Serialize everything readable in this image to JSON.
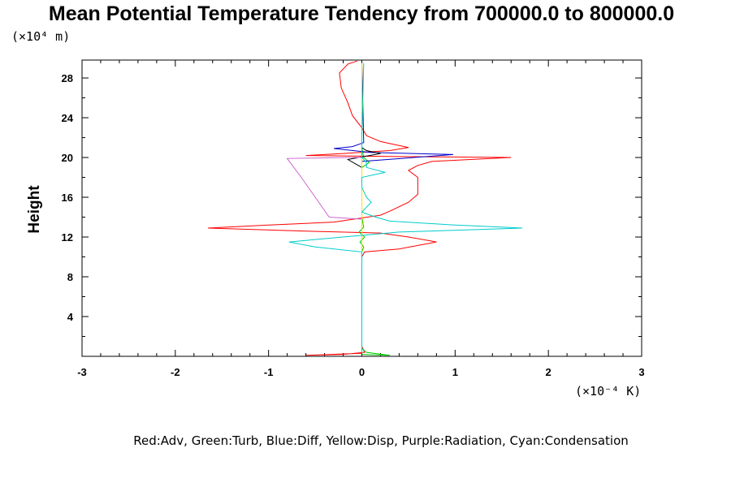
{
  "chart_data": {
    "type": "line",
    "title": "Mean Potential Temperature Tendency from 700000.0 to 800000.0",
    "ylabel": "Height",
    "y_unit": "(×10⁴ m)",
    "x_unit": "(×10⁻⁴ K)",
    "legend_text": "Red:Adv, Green:Turb, Blue:Diff, Yellow:Disp, Purple:Radiation, Cyan:Condensation",
    "xlim": [
      -3,
      3
    ],
    "ylim": [
      0,
      29.8
    ],
    "x_ticks": [
      -3,
      -2,
      -1,
      0,
      1,
      2,
      3
    ],
    "x_tick_labels": [
      "-3",
      "-2",
      "-1",
      "0",
      "1",
      "2",
      "3"
    ],
    "y_ticks": [
      4,
      8,
      12,
      16,
      20,
      24,
      28
    ],
    "y_tick_labels": [
      "4",
      "8",
      "12",
      "16",
      "20",
      "24",
      "28"
    ],
    "series": [
      {
        "color": "#ff0000",
        "points": [
          [
            0,
            0.3
          ],
          [
            -0.6,
            0.1
          ],
          [
            -0.2,
            0.2
          ],
          [
            0.03,
            0.4
          ],
          [
            0,
            1
          ],
          [
            0,
            10
          ],
          [
            0.03,
            10.5
          ],
          [
            0.4,
            10.8
          ],
          [
            0.8,
            11.5
          ],
          [
            0.5,
            12
          ],
          [
            0.2,
            12.4
          ],
          [
            -0.6,
            12.6
          ],
          [
            -1.65,
            12.9
          ],
          [
            -1,
            13.2
          ],
          [
            -0.3,
            13.5
          ],
          [
            0.2,
            14.2
          ],
          [
            0.3,
            14.6
          ],
          [
            0.5,
            15.5
          ],
          [
            0.6,
            16.3
          ],
          [
            0.6,
            17
          ],
          [
            0.6,
            18
          ],
          [
            0.5,
            18.7
          ],
          [
            0.6,
            19.2
          ],
          [
            0.75,
            19.6
          ],
          [
            1.6,
            20
          ],
          [
            0.3,
            20.1
          ],
          [
            -0.6,
            20.2
          ],
          [
            -0.2,
            20.4
          ],
          [
            0.3,
            20.7
          ],
          [
            0.5,
            21
          ],
          [
            0.2,
            21.6
          ],
          [
            0.05,
            22.2
          ],
          [
            0,
            23
          ],
          [
            -0.1,
            24.2
          ],
          [
            -0.15,
            25.5
          ],
          [
            -0.22,
            27
          ],
          [
            -0.24,
            28.5
          ],
          [
            -0.15,
            29.4
          ],
          [
            -0.05,
            29.7
          ]
        ]
      },
      {
        "color": "#00cc00",
        "points": [
          [
            0,
            0.2
          ],
          [
            0.3,
            0.1
          ],
          [
            0.05,
            0.4
          ],
          [
            0,
            0.8
          ],
          [
            0,
            10.5
          ],
          [
            0.02,
            11
          ],
          [
            -0.02,
            11.5
          ],
          [
            0.03,
            12
          ],
          [
            -0.03,
            12.5
          ],
          [
            0.02,
            13
          ],
          [
            0,
            14
          ],
          [
            0,
            19
          ],
          [
            0.08,
            19.5
          ],
          [
            0.02,
            20
          ],
          [
            0,
            21
          ],
          [
            0,
            29.5
          ]
        ]
      },
      {
        "color": "#0000cc",
        "points": [
          [
            0,
            0.5
          ],
          [
            0,
            19.6
          ],
          [
            0.98,
            20.3
          ],
          [
            0.1,
            20.5
          ],
          [
            -0.3,
            20.9
          ],
          [
            -0.1,
            21.1
          ],
          [
            0.02,
            21.5
          ],
          [
            0,
            29.5
          ]
        ]
      },
      {
        "color": "#000000",
        "points": [
          [
            0,
            0.5
          ],
          [
            0,
            19
          ],
          [
            -0.15,
            19.8
          ],
          [
            0.2,
            20.4
          ],
          [
            0.05,
            20.7
          ],
          [
            0,
            21
          ],
          [
            0,
            29.5
          ]
        ]
      },
      {
        "color": "#ffdd00",
        "points": [
          [
            0,
            0.5
          ],
          [
            0,
            29.5
          ]
        ]
      },
      {
        "color": "#cc66cc",
        "points": [
          [
            0,
            13.8
          ],
          [
            -0.35,
            14
          ],
          [
            -0.5,
            16
          ],
          [
            -0.65,
            18
          ],
          [
            -0.8,
            19.9
          ],
          [
            -0.15,
            20
          ],
          [
            0,
            20
          ]
        ]
      },
      {
        "color": "#00cccc",
        "points": [
          [
            0,
            0.3
          ],
          [
            0,
            10.5
          ],
          [
            -0.5,
            11
          ],
          [
            -0.78,
            11.5
          ],
          [
            -0.2,
            12
          ],
          [
            0.4,
            12.5
          ],
          [
            1.72,
            12.9
          ],
          [
            1,
            13.2
          ],
          [
            0.3,
            13.6
          ],
          [
            0.15,
            14
          ],
          [
            0,
            14.5
          ],
          [
            0.05,
            15
          ],
          [
            0.1,
            15.5
          ],
          [
            0.05,
            16
          ],
          [
            0,
            17
          ],
          [
            0,
            18
          ],
          [
            0.25,
            18.5
          ],
          [
            0.05,
            19
          ],
          [
            0.05,
            19.5
          ],
          [
            0,
            20
          ],
          [
            0,
            22
          ],
          [
            0.02,
            29.5
          ]
        ]
      }
    ]
  }
}
